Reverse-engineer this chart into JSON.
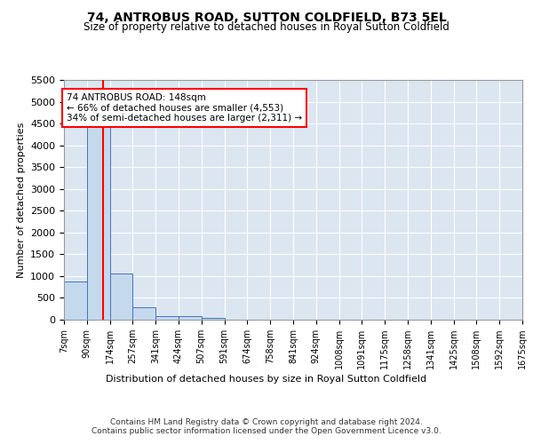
{
  "title": "74, ANTROBUS ROAD, SUTTON COLDFIELD, B73 5EL",
  "subtitle": "Size of property relative to detached houses in Royal Sutton Coldfield",
  "xlabel": "Distribution of detached houses by size in Royal Sutton Coldfield",
  "ylabel": "Number of detached properties",
  "bar_color": "#c5d9ed",
  "bar_edge_color": "#4472c4",
  "plot_bg_color": "#dce6f1",
  "annotation_text": "74 ANTROBUS ROAD: 148sqm\n← 66% of detached houses are smaller (4,553)\n34% of semi-detached houses are larger (2,311) →",
  "annotation_box_color": "white",
  "annotation_box_edge": "red",
  "property_line_x": 148,
  "footer": "Contains HM Land Registry data © Crown copyright and database right 2024.\nContains public sector information licensed under the Open Government Licence v3.0.",
  "bins": [
    7,
    90,
    174,
    257,
    341,
    424,
    507,
    591,
    674,
    758,
    841,
    924,
    1008,
    1091,
    1175,
    1258,
    1341,
    1425,
    1508,
    1592,
    1675
  ],
  "bin_labels": [
    "7sqm",
    "90sqm",
    "174sqm",
    "257sqm",
    "341sqm",
    "424sqm",
    "507sqm",
    "591sqm",
    "674sqm",
    "758sqm",
    "841sqm",
    "924sqm",
    "1008sqm",
    "1091sqm",
    "1175sqm",
    "1258sqm",
    "1341sqm",
    "1425sqm",
    "1508sqm",
    "1592sqm",
    "1675sqm"
  ],
  "bar_heights": [
    880,
    4553,
    1060,
    290,
    90,
    75,
    50,
    0,
    0,
    0,
    0,
    0,
    0,
    0,
    0,
    0,
    0,
    0,
    0,
    0
  ],
  "ylim": [
    0,
    5500
  ],
  "yticks": [
    0,
    500,
    1000,
    1500,
    2000,
    2500,
    3000,
    3500,
    4000,
    4500,
    5000,
    5500
  ]
}
